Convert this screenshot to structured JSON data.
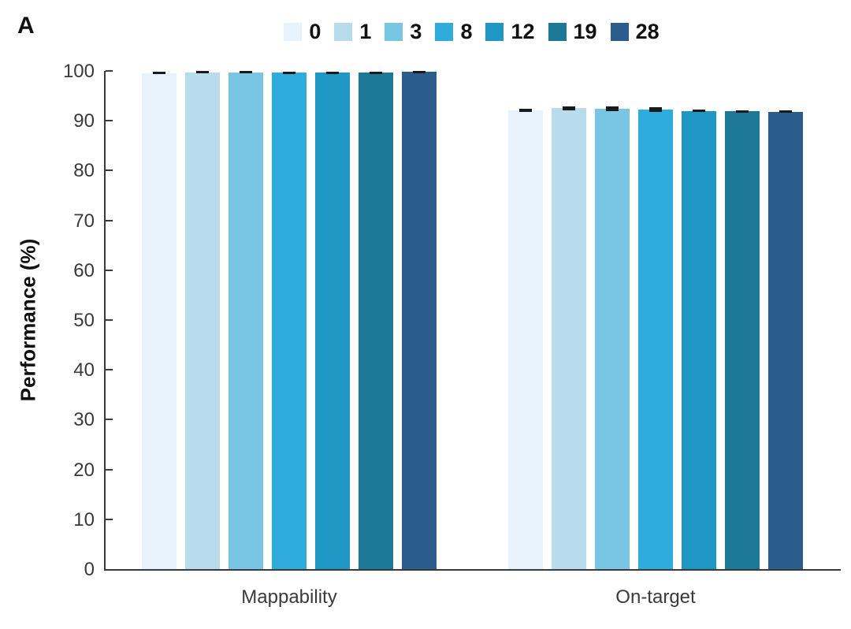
{
  "panel_label": "A",
  "chart_data": {
    "type": "bar",
    "title": "",
    "xlabel": "",
    "ylabel": "Performance (%)",
    "ylim": [
      0,
      100
    ],
    "ytick_step": 10,
    "grid": false,
    "legend_position": "top-center",
    "categories": [
      "Mappability",
      "On-target"
    ],
    "series": [
      {
        "name": "0",
        "color": "#e7f2fa",
        "values": [
          99.6,
          92.1
        ],
        "errors": [
          0.3,
          0.3
        ]
      },
      {
        "name": "1",
        "color": "#b9dcec",
        "values": [
          99.7,
          92.5
        ],
        "errors": [
          0.25,
          0.45
        ]
      },
      {
        "name": "3",
        "color": "#79c6e4",
        "values": [
          99.7,
          92.4
        ],
        "errors": [
          0.25,
          0.45
        ]
      },
      {
        "name": "8",
        "color": "#2fabdc",
        "values": [
          99.7,
          92.2
        ],
        "errors": [
          0.2,
          0.5
        ]
      },
      {
        "name": "12",
        "color": "#1f97c5",
        "values": [
          99.7,
          92.0
        ],
        "errors": [
          0.2,
          0.2
        ]
      },
      {
        "name": "19",
        "color": "#1d7897",
        "values": [
          99.7,
          91.9
        ],
        "errors": [
          0.15,
          0.25
        ]
      },
      {
        "name": "28",
        "color": "#2a5d8d",
        "values": [
          99.8,
          91.8
        ],
        "errors": [
          0.15,
          0.25
        ]
      }
    ],
    "axis_color": "#3a3a3a",
    "error_bar_color": "#1a1a1a",
    "text_color": "#111111"
  }
}
